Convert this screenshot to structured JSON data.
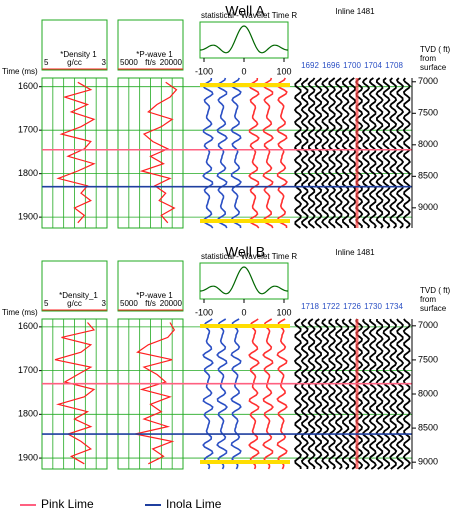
{
  "chart_data": {
    "type": "well-tie",
    "wells": [
      {
        "title": "Well A",
        "time_label": "Time (ms)",
        "ylim": [
          1580,
          1925
        ],
        "yticks": [
          1600,
          1700,
          1800,
          1900
        ],
        "time": [
          1590,
          1607,
          1624,
          1641,
          1658,
          1675,
          1692,
          1709,
          1726,
          1743,
          1760,
          1777,
          1794,
          1811,
          1828,
          1845,
          1862,
          1879,
          1896,
          1913
        ],
        "density": {
          "name": "*Density 1",
          "unit": "g/cc",
          "xlim": [
            5,
            3
          ],
          "color": "#ff2020",
          "values": [
            3.9,
            3.5,
            4.3,
            3.6,
            4.1,
            3.4,
            3.8,
            4.4,
            3.5,
            3.7,
            4.2,
            3.4,
            3.9,
            4.5,
            3.6,
            3.8,
            3.5,
            4.0,
            3.7,
            3.9
          ]
        },
        "pwave": {
          "name": "*P-wave 1",
          "unit": "ft/s",
          "xlim": [
            5000,
            20000
          ],
          "color": "#ff2020",
          "values": [
            16000,
            18500,
            17000,
            14000,
            12000,
            17500,
            15000,
            11000,
            13000,
            16500,
            12500,
            15500,
            10500,
            17000,
            13500,
            16000,
            14500,
            18000,
            15000,
            16500
          ]
        },
        "wavelet": {
          "title": "statistical - Wavelet Time R",
          "xticks": [
            -100,
            0,
            100
          ]
        },
        "inline": {
          "title": "Inline 1481",
          "traces": [
            1692,
            1696,
            1700,
            1704,
            1708
          ]
        },
        "tvd": {
          "label": [
            "TVD ( ft)",
            "from",
            "surface"
          ],
          "ylim": [
            6940,
            9320
          ],
          "yticks": [
            7000,
            7500,
            8000,
            8500,
            9000
          ]
        },
        "marker_times": [
          1745,
          1830
        ]
      },
      {
        "title": "Well B",
        "time_label": "Time (ms)",
        "ylim": [
          1582,
          1925
        ],
        "yticks": [
          1600,
          1700,
          1800,
          1900
        ],
        "time": [
          1590,
          1607,
          1624,
          1641,
          1658,
          1675,
          1692,
          1709,
          1726,
          1743,
          1760,
          1777,
          1794,
          1811,
          1828,
          1845,
          1862,
          1879,
          1896,
          1913
        ],
        "density": {
          "name": "*Density_1",
          "unit": "g/cc",
          "xlim": [
            5,
            3
          ],
          "color": "#ff2020",
          "values": [
            3.6,
            3.4,
            4.4,
            3.5,
            3.8,
            4.6,
            3.5,
            3.9,
            4.3,
            3.4,
            3.7,
            4.5,
            3.6,
            4.0,
            3.5,
            4.2,
            3.8,
            3.5,
            4.1,
            3.7
          ]
        },
        "pwave": {
          "name": "*P-wave 1",
          "unit": "ft/s",
          "xlim": [
            5000,
            20000
          ],
          "color": "#ff2020",
          "values": [
            17000,
            18000,
            16500,
            12000,
            9500,
            17500,
            11000,
            14000,
            16000,
            10500,
            17000,
            12500,
            15000,
            11000,
            16500,
            9000,
            17500,
            13000,
            15500,
            12000
          ]
        },
        "wavelet": {
          "title": "statistical - Wavelet Time R",
          "xticks": [
            -100,
            0,
            100
          ]
        },
        "inline": {
          "title": "Inline 1481",
          "traces": [
            1718,
            1722,
            1726,
            1730,
            1734
          ]
        },
        "tvd": {
          "label": [
            "TVD ( ft)",
            "from",
            "surface"
          ],
          "ylim": [
            6900,
            9100
          ],
          "yticks": [
            7000,
            7500,
            8000,
            8500,
            9000
          ]
        },
        "marker_times": [
          1730,
          1845
        ]
      }
    ],
    "legend": [
      {
        "name": "Pink Lime",
        "color": "#ff6080"
      },
      {
        "name": "Inola Lime",
        "color": "#1f3f9f"
      }
    ]
  }
}
